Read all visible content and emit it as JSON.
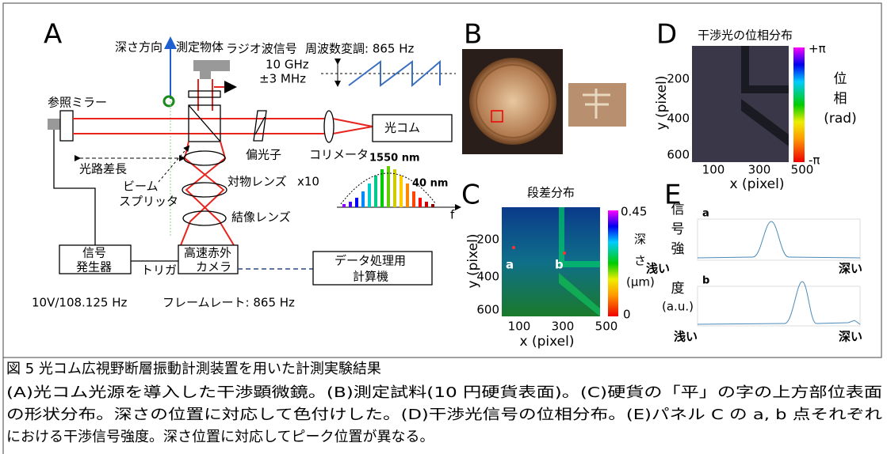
{
  "panel_a": {
    "label": "A",
    "depth_direction": "深さ方向",
    "object": "測定物体",
    "radio_signal": "ラジオ波信号",
    "modulation": "周波数変調: 865 Hz",
    "freq": "10 GHz",
    "freq_dev": "±3 MHz",
    "ref_mirror": "参照ミラー",
    "comb": "光コム",
    "polarizer": "偏光子",
    "collimator": "コリメータ",
    "path_diff": "光路差長",
    "beam": "ビーム",
    "splitter": "スプリッタ",
    "objective": "対物レンズ",
    "magnification": "x10",
    "center_wl": "1550 nm",
    "bandwidth": "40 nm",
    "f_axis": "f",
    "imaging_lens": "結像レンズ",
    "gen_line1": "信号",
    "gen_line2": "発生器",
    "trigger": "トリガ",
    "cam_line1": "高速赤外",
    "cam_line2": "カメラ",
    "pc_line1": "データ処理用",
    "pc_line2": "計算機",
    "gen_spec": "10V/108.125 Hz",
    "frame_rate": "フレームレート: 865 Hz"
  },
  "panel_b": {
    "label": "B"
  },
  "panel_c": {
    "label": "C",
    "title": "段差分布",
    "yticks": [
      "200",
      "400",
      "600"
    ],
    "xticks": [
      "100",
      "300",
      "500"
    ],
    "ylabel": "y (pixel)",
    "xlabel": "x (pixel)",
    "cbar_max": "0.45",
    "cbar_min": "0",
    "cbar_label": [
      "深",
      "さ",
      "(μm)"
    ],
    "point_a": "a",
    "point_b": "b"
  },
  "panel_d": {
    "label": "D",
    "title": "干渉光の位相分布",
    "yticks": [
      "200",
      "400",
      "600"
    ],
    "xticks": [
      "100",
      "300",
      "500"
    ],
    "ylabel": "y (pixel)",
    "xlabel": "x (pixel)",
    "cbar_max": "+π",
    "cbar_min": "-π",
    "cbar_label": [
      "位",
      "相",
      "(rad)"
    ]
  },
  "panel_e": {
    "label": "E",
    "trace_a": "a",
    "trace_b": "b",
    "shallow": "浅い",
    "deep": "深い",
    "ylabel": [
      "信",
      "号",
      "強",
      "度",
      "(a.u.)"
    ]
  },
  "caption": {
    "title": "図 5 光コム広視野断層振動計測装置を用いた計測実験結果",
    "lines": [
      "(A)光コム光源を導入した干渉顕微鏡。(B)測定試料(10 円硬貨表面)。(C)硬貨の「平」の字の上方部位表面",
      "の形状分布。深さの位置に対応して色付けした。(D)干渉光信号の位相分布。(E)パネル C の a, b 点それぞれ",
      "における干渉信号強度。深さ位置に対応してピーク位置が異なる。"
    ]
  }
}
